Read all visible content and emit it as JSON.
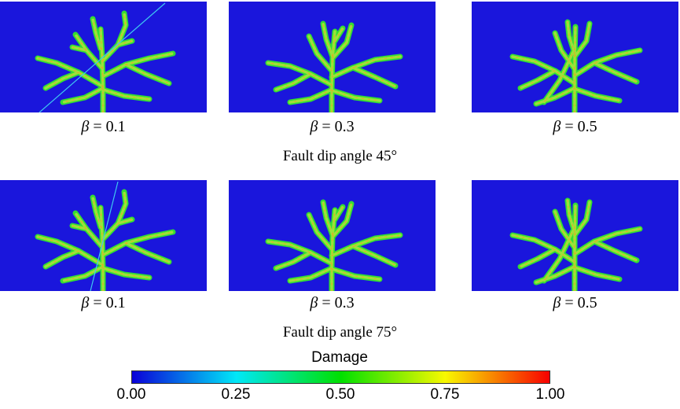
{
  "colors": {
    "background": "#1a16dc",
    "fracture_outline": "#33dd33",
    "fracture_fill": "#9be23a",
    "fracture_core": "#e8a81e",
    "fault_line": "#3ec8f0"
  },
  "rows": [
    {
      "title": "Fault dip angle 45°",
      "panels": [
        {
          "beta_symbol": "β",
          "beta_text": " = 0.1",
          "fault": true
        },
        {
          "beta_symbol": "β",
          "beta_text": " = 0.3",
          "fault": false
        },
        {
          "beta_symbol": "β",
          "beta_text": " = 0.5",
          "fault": false
        }
      ]
    },
    {
      "title": "Fault dip angle 75°",
      "panels": [
        {
          "beta_symbol": "β",
          "beta_text": " = 0.1",
          "fault": true
        },
        {
          "beta_symbol": "β",
          "beta_text": " = 0.3",
          "fault": false
        },
        {
          "beta_symbol": "β",
          "beta_text": " = 0.5",
          "fault": false
        }
      ]
    }
  ],
  "colorbar": {
    "title": "Damage",
    "ticks": [
      "0.00",
      "0.25",
      "0.50",
      "0.75",
      "1.00"
    ],
    "stops": [
      "#0a00d8",
      "#00e8f8",
      "#00e000",
      "#f8f800",
      "#f80000"
    ]
  }
}
